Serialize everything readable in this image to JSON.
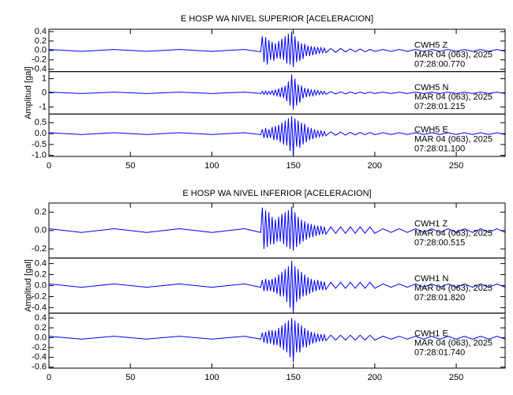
{
  "chart_data": [
    {
      "type": "line",
      "title": "E HOSP WA NIVEL SUPERIOR [ACELERACION]",
      "y_label": "Amplitud [gal]",
      "color": "#0000ff",
      "xlim": [
        0,
        280
      ],
      "xticks": [
        0,
        50,
        100,
        150,
        200,
        250
      ],
      "x": [
        0,
        20,
        40,
        60,
        80,
        100,
        120,
        130,
        131,
        132,
        133,
        134,
        135,
        136,
        137,
        138,
        139,
        140,
        141,
        142,
        143,
        144,
        145,
        146,
        147,
        148,
        149,
        150,
        151,
        152,
        153,
        154,
        155,
        156,
        157,
        158,
        159,
        160,
        161,
        162,
        163,
        164,
        165,
        166,
        167,
        168,
        169,
        170,
        173,
        176,
        179,
        182,
        185,
        188,
        191,
        194,
        197,
        200,
        205,
        210,
        215,
        220,
        225,
        230,
        235,
        240,
        245,
        250,
        255,
        260,
        265,
        270,
        275,
        280
      ],
      "panels": [
        {
          "ylim": [
            -0.45,
            0.45
          ],
          "yticks": [
            0.4,
            0.2,
            {
              "value": 0,
              "label": "0.0"
            },
            -0.2,
            -0.4
          ],
          "annotations": [
            "CWH5   Z",
            "MAR 04 (063), 2025",
            "07:28:00.770"
          ],
          "values": [
            0.02,
            -0.02,
            0.02,
            -0.02,
            0.02,
            -0.02,
            0.02,
            -0.03,
            0.3,
            -0.25,
            0.28,
            -0.3,
            0.22,
            -0.2,
            0.18,
            -0.22,
            0.15,
            -0.17,
            0.2,
            -0.18,
            0.25,
            -0.2,
            0.3,
            -0.28,
            0.35,
            -0.3,
            0.4,
            -0.35,
            0.3,
            -0.25,
            0.2,
            -0.22,
            0.15,
            -0.18,
            0.14,
            -0.12,
            0.1,
            -0.12,
            0.09,
            -0.1,
            0.08,
            -0.08,
            0.07,
            -0.06,
            0.06,
            -0.05,
            0.05,
            -0.05,
            0.04,
            -0.04,
            0.04,
            -0.03,
            0.03,
            -0.03,
            0.03,
            -0.03,
            0.02,
            -0.02,
            0.02,
            -0.02,
            0.02,
            -0.02,
            0.02,
            -0.02,
            0.02,
            -0.02,
            0.02,
            -0.02,
            0.02,
            -0.02,
            0.02,
            -0.02,
            0.02,
            -0.02
          ]
        },
        {
          "ylim": [
            -1.5,
            1.5
          ],
          "yticks": [
            1,
            0,
            -1
          ],
          "annotations": [
            "CWH5   N",
            "MAR 04 (063), 2025",
            "07:28:01.215"
          ],
          "values": [
            0.05,
            -0.05,
            0.05,
            -0.05,
            0.05,
            -0.05,
            0.05,
            -0.05,
            0.1,
            -0.1,
            0.12,
            -0.12,
            0.1,
            -0.1,
            0.15,
            -0.15,
            0.2,
            -0.2,
            0.3,
            -0.3,
            0.4,
            -0.35,
            0.5,
            -0.6,
            0.8,
            -0.9,
            1.3,
            -1.2,
            1.0,
            -0.9,
            0.6,
            -0.7,
            0.5,
            -0.4,
            0.35,
            -0.3,
            0.3,
            -0.25,
            0.2,
            -0.2,
            0.18,
            -0.15,
            0.15,
            -0.12,
            0.12,
            -0.1,
            0.1,
            -0.1,
            0.08,
            -0.08,
            0.07,
            -0.07,
            0.06,
            -0.06,
            0.05,
            -0.05,
            0.05,
            -0.05,
            0.05,
            -0.05,
            0.05,
            -0.05,
            0.05,
            -0.05,
            0.05,
            -0.05,
            0.05,
            -0.05,
            0.05,
            -0.05,
            0.05,
            -0.05,
            0.05,
            -0.05
          ]
        },
        {
          "ylim": [
            -1.05,
            0.9
          ],
          "yticks": [
            0.5,
            {
              "value": 0,
              "label": "0.0"
            },
            -0.5,
            {
              "value": -1,
              "label": "-1.0"
            }
          ],
          "annotations": [
            "CWH5   E",
            "MAR 04 (063), 2025",
            "07:28:01.100"
          ],
          "values": [
            0.04,
            -0.04,
            0.04,
            -0.04,
            0.04,
            -0.04,
            0.04,
            -0.05,
            0.2,
            -0.2,
            0.25,
            -0.22,
            0.2,
            -0.2,
            0.3,
            -0.3,
            0.35,
            -0.3,
            0.4,
            -0.4,
            0.5,
            -0.5,
            0.6,
            -0.55,
            0.7,
            -0.8,
            0.8,
            -1.0,
            0.7,
            -0.6,
            0.6,
            -0.65,
            0.5,
            -0.5,
            0.45,
            -0.4,
            0.3,
            -0.3,
            0.25,
            -0.25,
            0.2,
            -0.2,
            0.15,
            -0.15,
            0.12,
            -0.12,
            0.1,
            -0.1,
            0.08,
            -0.08,
            0.07,
            -0.07,
            0.06,
            -0.06,
            0.05,
            -0.05,
            0.05,
            -0.05,
            0.04,
            -0.04,
            0.04,
            -0.04,
            0.04,
            -0.04,
            0.04,
            -0.04,
            0.04,
            -0.04,
            0.04,
            -0.04,
            0.04,
            -0.04,
            0.04,
            -0.04
          ]
        }
      ]
    },
    {
      "type": "line",
      "title": "E HOSP WA NIVEL INFERIOR [ACELERACION]",
      "y_label": "Amplitud [gal]",
      "color": "#0000ff",
      "xlim": [
        0,
        280
      ],
      "xticks": [
        0,
        50,
        100,
        150,
        200,
        250
      ],
      "x": [
        0,
        20,
        40,
        60,
        80,
        100,
        120,
        130,
        131,
        132,
        133,
        134,
        135,
        136,
        137,
        138,
        139,
        140,
        141,
        142,
        143,
        144,
        145,
        146,
        147,
        148,
        149,
        150,
        151,
        152,
        153,
        154,
        155,
        156,
        157,
        158,
        159,
        160,
        161,
        162,
        163,
        164,
        165,
        166,
        167,
        168,
        169,
        170,
        173,
        176,
        179,
        182,
        185,
        188,
        191,
        194,
        197,
        200,
        205,
        210,
        215,
        220,
        225,
        230,
        235,
        240,
        245,
        250,
        255,
        260,
        265,
        270,
        275,
        280
      ],
      "panels": [
        {
          "ylim": [
            -0.3,
            0.3
          ],
          "yticks": [
            0.2,
            {
              "value": 0,
              "label": "0.0"
            },
            -0.2
          ],
          "annotations": [
            "CWH1   Z",
            "MAR 04 (063), 2025",
            "07:28:00.515"
          ],
          "values": [
            0.02,
            -0.02,
            0.02,
            -0.02,
            0.02,
            -0.02,
            0.02,
            -0.02,
            0.25,
            -0.2,
            0.22,
            -0.18,
            0.2,
            -0.15,
            0.15,
            -0.15,
            0.12,
            -0.12,
            0.15,
            -0.12,
            0.18,
            -0.15,
            0.2,
            -0.18,
            0.22,
            -0.2,
            0.26,
            -0.22,
            0.2,
            -0.18,
            0.15,
            -0.15,
            0.12,
            -0.12,
            0.1,
            -0.1,
            0.08,
            -0.08,
            0.07,
            -0.07,
            0.06,
            -0.06,
            0.05,
            -0.05,
            0.05,
            -0.04,
            0.04,
            -0.04,
            0.04,
            -0.03,
            0.04,
            -0.03,
            0.04,
            -0.03,
            0.04,
            -0.03,
            0.04,
            -0.03,
            0.02,
            -0.02,
            0.02,
            -0.02,
            0.02,
            -0.02,
            0.02,
            -0.02,
            0.02,
            -0.02,
            0.02,
            -0.02,
            0.02,
            -0.02,
            0.02,
            -0.02
          ]
        },
        {
          "ylim": [
            -0.5,
            0.5
          ],
          "yticks": [
            0.4,
            0.2,
            {
              "value": 0,
              "label": "0.0"
            },
            -0.2,
            -0.4
          ],
          "annotations": [
            "CWH1   N",
            "MAR 04 (063), 2025",
            "07:28:01.820"
          ],
          "values": [
            0.03,
            -0.03,
            0.03,
            -0.03,
            0.03,
            -0.03,
            0.03,
            -0.03,
            0.1,
            -0.1,
            0.12,
            -0.1,
            0.1,
            -0.1,
            0.12,
            -0.12,
            0.15,
            -0.15,
            0.2,
            -0.2,
            0.25,
            -0.2,
            0.3,
            -0.3,
            0.35,
            -0.4,
            0.45,
            -0.5,
            0.35,
            -0.3,
            0.3,
            -0.25,
            0.25,
            -0.2,
            0.2,
            -0.18,
            0.15,
            -0.15,
            0.12,
            -0.12,
            0.1,
            -0.1,
            0.1,
            -0.08,
            0.08,
            -0.08,
            0.07,
            -0.07,
            0.06,
            -0.05,
            0.06,
            -0.05,
            0.06,
            -0.05,
            0.06,
            -0.05,
            0.06,
            -0.05,
            0.03,
            -0.03,
            0.03,
            -0.03,
            0.03,
            -0.03,
            0.03,
            -0.03,
            0.03,
            -0.03,
            0.03,
            -0.03,
            0.03,
            -0.03,
            0.03,
            -0.03
          ]
        },
        {
          "ylim": [
            -0.62,
            0.5
          ],
          "yticks": [
            0.4,
            0.2,
            {
              "value": 0,
              "label": "0.0"
            },
            -0.2,
            -0.4,
            -0.6
          ],
          "annotations": [
            "CWH1   E",
            "MAR 04 (063), 2025",
            "07:28:01.740"
          ],
          "values": [
            0.03,
            -0.03,
            0.03,
            -0.03,
            0.03,
            -0.03,
            0.03,
            -0.03,
            0.1,
            -0.1,
            0.12,
            -0.12,
            0.15,
            -0.12,
            0.15,
            -0.15,
            0.15,
            -0.15,
            0.2,
            -0.2,
            0.25,
            -0.25,
            0.3,
            -0.3,
            0.35,
            -0.4,
            0.4,
            -0.5,
            0.35,
            -0.3,
            0.3,
            -0.3,
            0.25,
            -0.2,
            0.2,
            -0.2,
            0.15,
            -0.15,
            0.12,
            -0.12,
            0.1,
            -0.1,
            0.08,
            -0.08,
            0.07,
            -0.07,
            0.06,
            -0.06,
            0.05,
            -0.05,
            0.05,
            -0.05,
            0.05,
            -0.05,
            0.05,
            -0.05,
            0.05,
            -0.05,
            0.03,
            -0.03,
            0.03,
            -0.03,
            0.03,
            -0.03,
            0.03,
            -0.03,
            0.03,
            -0.03,
            0.03,
            -0.03,
            0.03,
            -0.03,
            0.03,
            -0.03
          ]
        }
      ]
    }
  ]
}
